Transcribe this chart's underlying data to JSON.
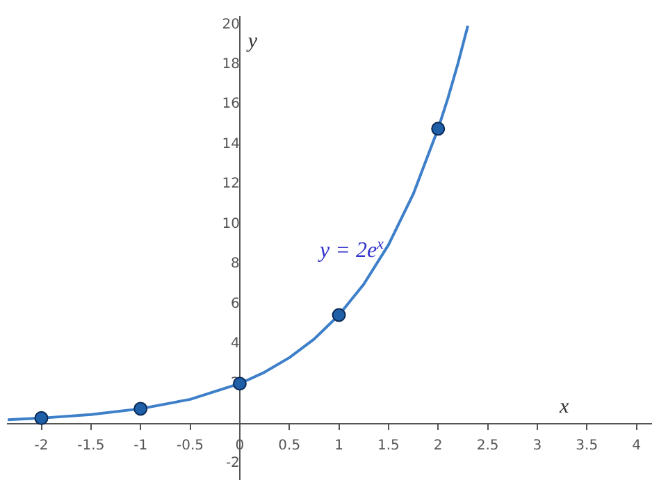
{
  "chart_data": {
    "type": "line",
    "xlabel": "x",
    "ylabel": "y",
    "xlim": [
      -2.34,
      4.15
    ],
    "ylim": [
      -2.8,
      20.4
    ],
    "xticks": [
      -2,
      -1.5,
      -1,
      -0.5,
      0,
      0.5,
      1,
      1.5,
      2,
      2.5,
      3,
      3.5,
      4
    ],
    "yticks": [
      -2,
      2,
      4,
      6,
      8,
      10,
      12,
      14,
      16,
      18,
      20
    ],
    "grid": false,
    "legend": false,
    "series": [
      {
        "color": "#3d7fc9",
        "marker": "none",
        "x": [
          -2.34,
          -2,
          -1.5,
          -1,
          -0.5,
          0,
          0.25,
          0.5,
          0.75,
          1,
          1.25,
          1.5,
          1.75,
          2,
          2.1,
          2.2,
          2.3
        ],
        "values": [
          0.19,
          0.27,
          0.45,
          0.74,
          1.21,
          2,
          2.57,
          3.3,
          4.23,
          5.44,
          6.98,
          8.96,
          11.51,
          14.78,
          16.33,
          18.05,
          19.95
        ]
      },
      {
        "type": "scatter",
        "color": "#1f5fa8",
        "marker": "circle",
        "x": [
          -2,
          -1,
          0,
          1,
          2
        ],
        "values": [
          0.27,
          0.74,
          2,
          5.44,
          14.78
        ]
      }
    ],
    "annotations": [
      "y = 2e$^{x}$"
    ]
  }
}
